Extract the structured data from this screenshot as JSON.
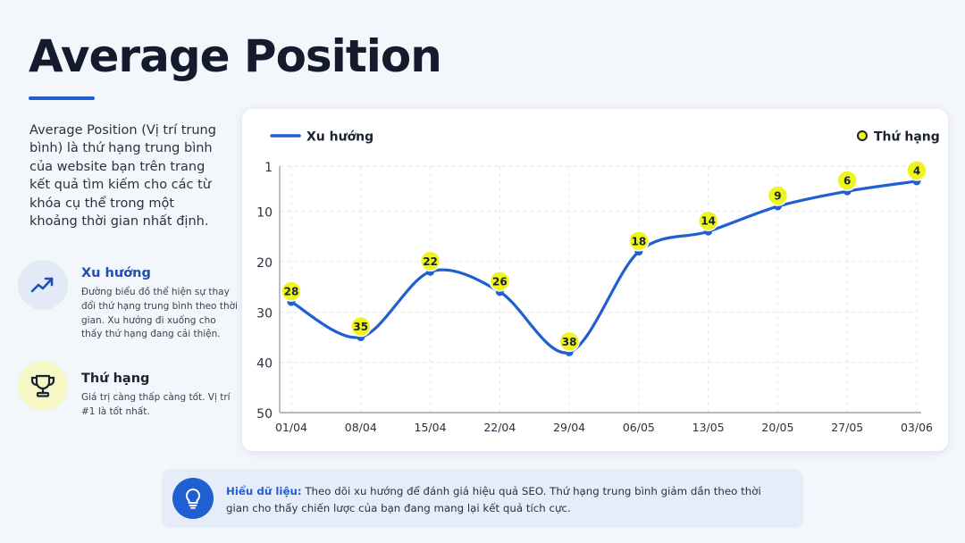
{
  "header": {
    "title": "Average Position",
    "description": "Average Position (Vị trí trung bình) là thứ hạng trung bình của website bạn trên trang kết quả tìm kiếm cho các từ khóa cụ thể trong một khoảng thời gian nhất định."
  },
  "features": [
    {
      "title": "Xu hướng",
      "description": "Đường biểu đồ thể hiện sự thay đổi thứ hạng trung bình theo thời gian. Xu hướng đi xuống cho thấy thứ hạng đang cải thiện.",
      "icon": "trending-up-icon"
    },
    {
      "title": "Thứ hạng",
      "description": "Giá trị càng thấp càng tốt. Vị trí #1 là tốt nhất.",
      "icon": "trophy-icon"
    }
  ],
  "insight": {
    "label": "Hiểu dữ liệu:",
    "text": " Theo dõi xu hướng để đánh giá hiệu quả SEO. Thứ hạng trung bình giảm dần theo thời gian cho thấy chiến lược của bạn đang mang lại kết quả tích cực.",
    "icon": "lightbulb-icon"
  },
  "colors": {
    "line": "#1f5fd1",
    "marker": "#eef51a",
    "marker_stroke": "#1c2330",
    "accent": "#1f5fd1"
  },
  "chart_data": {
    "type": "line",
    "x": [
      "01/04",
      "08/04",
      "15/04",
      "22/04",
      "29/04",
      "06/05",
      "13/05",
      "20/05",
      "27/05",
      "03/06"
    ],
    "series": [
      {
        "name": "Xu hướng",
        "values": [
          28,
          35,
          22,
          26,
          38,
          18,
          14,
          9,
          6,
          4
        ]
      }
    ],
    "legend": [
      "Xu hướng",
      "Thứ hạng"
    ],
    "y_ticks": [
      1,
      10,
      20,
      30,
      40,
      50
    ],
    "ylim": [
      1,
      50
    ],
    "y_inverted": true,
    "grid": true,
    "legend_placement": "top",
    "data_labels": true
  }
}
